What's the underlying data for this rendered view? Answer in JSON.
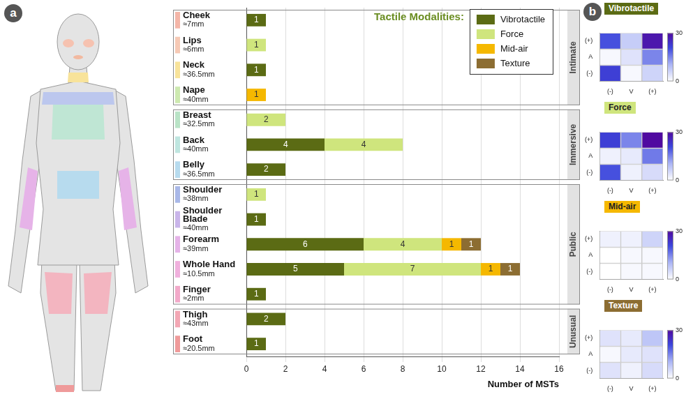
{
  "panel_labels": [
    "a",
    "b"
  ],
  "chart_data": [
    {
      "type": "bar",
      "orientation": "horizontal",
      "stacked": true,
      "data_labels": true,
      "grid": true,
      "legend": "top right",
      "legend_title": "Tactile Modalities:",
      "categories": [
        "Cheek",
        "Lips",
        "Neck",
        "Nape",
        "Breast",
        "Back",
        "Belly",
        "Shoulder",
        "Shoulder Blade",
        "Forearm",
        "Whole Hand",
        "Finger",
        "Thigh",
        "Foot"
      ],
      "category_notes": [
        "≈7mm",
        "≈6mm",
        "≈36.5mm",
        "≈40mm",
        "≈32.5mm",
        "≈40mm",
        "≈36.5mm",
        "≈38mm",
        "≈40mm",
        "≈39mm",
        "≈10.5mm",
        "≈2mm",
        "≈43mm",
        "≈20.5mm"
      ],
      "groups": [
        {
          "label": "Intimate",
          "members": [
            "Cheek",
            "Lips",
            "Neck",
            "Nape"
          ]
        },
        {
          "label": "Immersive",
          "members": [
            "Breast",
            "Back",
            "Belly"
          ]
        },
        {
          "label": "Public",
          "members": [
            "Shoulder",
            "Shoulder Blade",
            "Forearm",
            "Whole Hand",
            "Finger"
          ]
        },
        {
          "label": "Unusual",
          "members": [
            "Thigh",
            "Foot"
          ]
        }
      ],
      "series": [
        {
          "name": "Vibrotactile",
          "color": "#5b6b14",
          "values": [
            1,
            null,
            1,
            null,
            null,
            4,
            2,
            null,
            1,
            6,
            5,
            1,
            2,
            1
          ]
        },
        {
          "name": "Force",
          "color": "#cfe57d",
          "values": [
            null,
            1,
            null,
            null,
            2,
            4,
            null,
            1,
            null,
            4,
            7,
            null,
            null,
            null
          ]
        },
        {
          "name": "Mid-air",
          "color": "#f5b800",
          "values": [
            null,
            null,
            null,
            1,
            null,
            null,
            null,
            null,
            null,
            1,
            1,
            null,
            null,
            null
          ]
        },
        {
          "name": "Texture",
          "color": "#8c6d32",
          "values": [
            null,
            null,
            null,
            null,
            null,
            null,
            null,
            null,
            null,
            1,
            1,
            null,
            null,
            null
          ]
        }
      ],
      "xlabel": "Number of MSTs",
      "xlim": [
        0,
        16
      ],
      "xticks": [
        0,
        2,
        4,
        6,
        8,
        10,
        12,
        14,
        16
      ]
    },
    {
      "type": "heatmap",
      "title": "Vibrotactile",
      "color": "#5b6b14",
      "xlabel": "V",
      "ylabel": "A",
      "x_ends": [
        "(-)",
        "(+)"
      ],
      "y_ends": [
        "(-)",
        "(+)"
      ],
      "cells": [
        [
          20,
          7,
          28
        ],
        [
          1,
          4,
          15
        ],
        [
          22,
          1,
          6
        ]
      ],
      "colorbar": {
        "range": [
          0,
          30
        ],
        "ticks": [
          0,
          30
        ]
      }
    },
    {
      "type": "heatmap",
      "title": "Force",
      "color": "#cfe57d",
      "xlabel": "V",
      "ylabel": "A",
      "x_ends": [
        "(-)",
        "(+)"
      ],
      "y_ends": [
        "(-)",
        "(+)"
      ],
      "cells": [
        [
          22,
          15,
          30
        ],
        [
          2,
          3,
          16
        ],
        [
          20,
          2,
          5
        ]
      ],
      "colorbar": {
        "range": [
          0,
          30
        ],
        "ticks": [
          0,
          30
        ]
      }
    },
    {
      "type": "heatmap",
      "title": "Mid-air",
      "color": "#f5b800",
      "xlabel": "V",
      "ylabel": "A",
      "x_ends": [
        "(-)",
        "(+)"
      ],
      "y_ends": [
        "(-)",
        "(+)"
      ],
      "cells": [
        [
          2,
          2,
          6
        ],
        [
          0,
          1,
          1
        ],
        [
          0,
          1,
          1
        ]
      ],
      "colorbar": {
        "range": [
          0,
          30
        ],
        "ticks": [
          0,
          30
        ]
      }
    },
    {
      "type": "heatmap",
      "title": "Texture",
      "color": "#8c6d32",
      "xlabel": "V",
      "ylabel": "A",
      "x_ends": [
        "(-)",
        "(+)"
      ],
      "y_ends": [
        "(-)",
        "(+)"
      ],
      "cells": [
        [
          4,
          3,
          8
        ],
        [
          1,
          3,
          4
        ],
        [
          4,
          2,
          5
        ]
      ],
      "colorbar": {
        "range": [
          0,
          30
        ],
        "ticks": [
          0,
          30
        ]
      }
    }
  ]
}
